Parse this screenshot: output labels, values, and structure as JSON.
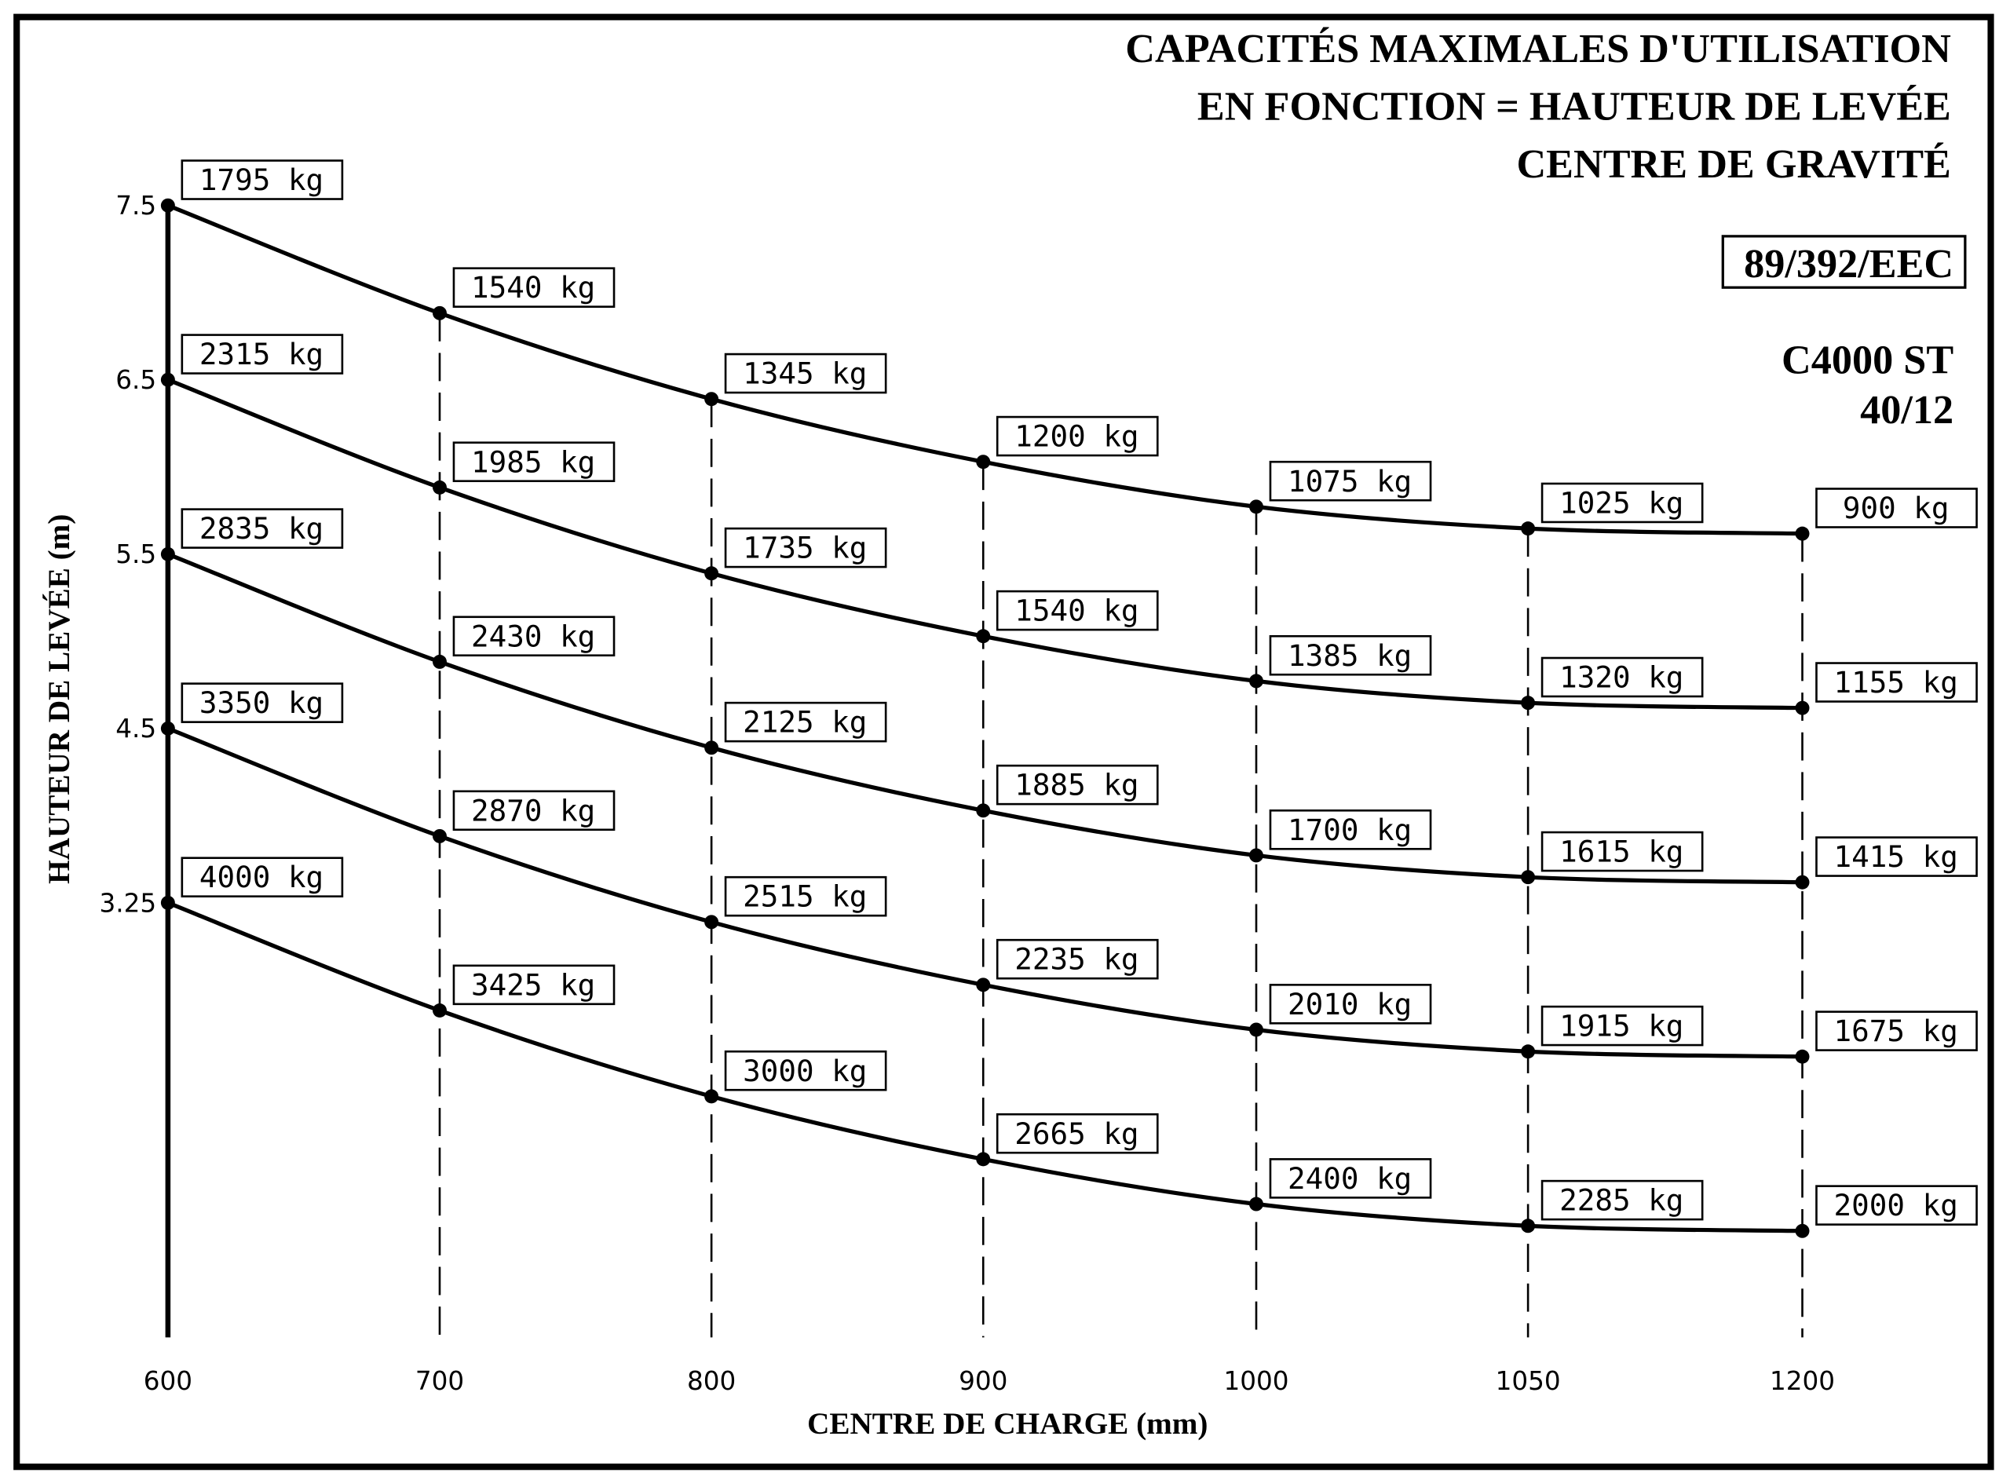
{
  "chart_data": {
    "type": "line",
    "title_lines": [
      "CAPACITÉS MAXIMALES D'UTILISATION",
      "EN FONCTION = HAUTEUR DE LEVÉE",
      "CENTRE DE GRAVITÉ"
    ],
    "standard": "89/392/EEC",
    "model_lines": [
      "C4000 ST",
      "40/12"
    ],
    "xlabel": "CENTRE DE CHARGE (mm)",
    "ylabel": "HAUTEUR DE LEVÉE (m)",
    "x": [
      "600",
      "700",
      "800",
      "900",
      "1000",
      "1050",
      "1200"
    ],
    "unit": "kg",
    "grid": "dashed vertical lines at each load centre",
    "series": [
      {
        "height": "7.5",
        "values": [
          1795,
          1540,
          1345,
          1200,
          1075,
          1025,
          900
        ]
      },
      {
        "height": "6.5",
        "values": [
          2315,
          1985,
          1735,
          1540,
          1385,
          1320,
          1155
        ]
      },
      {
        "height": "5.5",
        "values": [
          2835,
          2430,
          2125,
          1885,
          1700,
          1615,
          1415
        ]
      },
      {
        "height": "4.5",
        "values": [
          3350,
          2870,
          2515,
          2235,
          2010,
          1915,
          1675
        ]
      },
      {
        "height": "3.25",
        "values": [
          4000,
          3425,
          3000,
          2665,
          2400,
          2285,
          2000
        ]
      }
    ]
  }
}
